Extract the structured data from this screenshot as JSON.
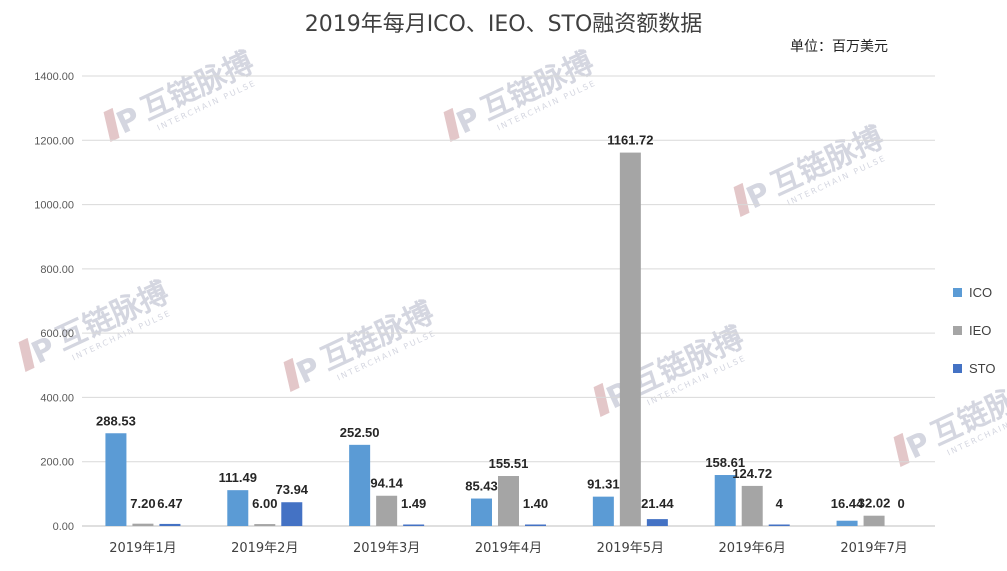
{
  "chart_data": {
    "type": "bar",
    "title": "2019年每月ICO、IEO、STO融资额数据",
    "unit": "单位：百万美元",
    "categories": [
      "2019年1月",
      "2019年2月",
      "2019年3月",
      "2019年4月",
      "2019年5月",
      "2019年6月",
      "2019年7月"
    ],
    "series": [
      {
        "name": "ICO",
        "color": "#5b9bd5",
        "values": [
          288.53,
          111.49,
          252.5,
          85.43,
          91.31,
          158.61,
          16.44
        ],
        "labels": [
          "288.53",
          "111.49",
          "252.50",
          "85.43",
          "91.31",
          "158.61",
          "16.44"
        ]
      },
      {
        "name": "IEO",
        "color": "#a5a5a5",
        "values": [
          7.2,
          6.0,
          94.14,
          155.51,
          1161.72,
          124.72,
          32.02
        ],
        "labels": [
          "7.20",
          "6.00",
          "94.14",
          "155.51",
          "1161.72",
          "124.72",
          "32.02"
        ]
      },
      {
        "name": "STO",
        "color": "#4472c4",
        "values": [
          6.47,
          73.94,
          1.49,
          1.4,
          21.44,
          4,
          0
        ],
        "labels": [
          "6.47",
          "73.94",
          "1.49",
          "1.40",
          "21.44",
          "4",
          "0"
        ]
      }
    ],
    "yticks": [
      "0.00",
      "200.00",
      "400.00",
      "600.00",
      "800.00",
      "1000.00",
      "1200.00",
      "1400.00"
    ],
    "ylim": [
      0,
      1400
    ],
    "grid": true,
    "legend_position": "right"
  },
  "watermark": {
    "text": "互链脉搏",
    "subtext": "INTERCHAIN PULSE"
  }
}
